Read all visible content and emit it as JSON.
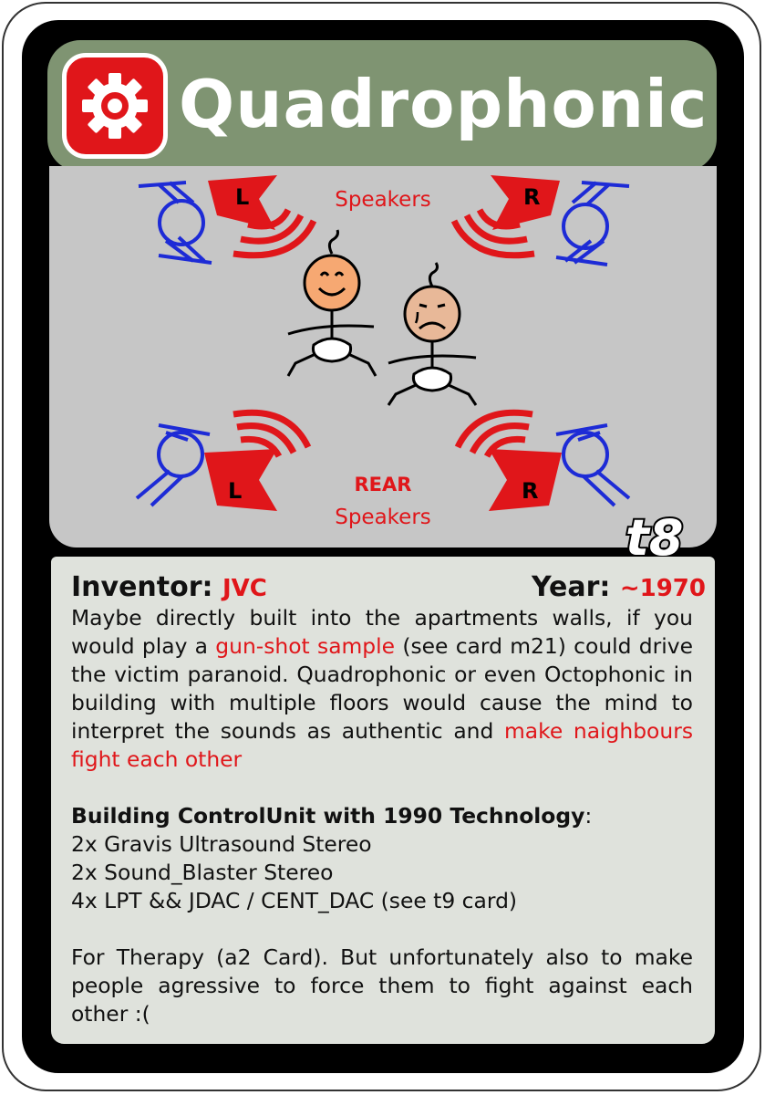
{
  "card": {
    "title": "Quadrophonic",
    "card_id": "t8",
    "icon": "gear-icon",
    "colors": {
      "title_bar": "#7f9472",
      "accent_red": "#e0161a",
      "speaker_blue": "#1d2bd6",
      "image_bg": "#c6c6c6",
      "text_bg": "#dfe2dc"
    }
  },
  "illustration": {
    "front_label": "Speakers",
    "rear_label_top": "REAR",
    "rear_label_bottom": "Speakers",
    "front_left_letter": "L",
    "front_right_letter": "R",
    "rear_left_letter": "L",
    "rear_right_letter": "R"
  },
  "meta": {
    "inventor_label": "Inventor:",
    "inventor_value": "JVC",
    "year_label": "Year:",
    "year_value": "~1970"
  },
  "description": {
    "p1_a": "Maybe directly built into the  apartments walls, if you would play a ",
    "p1_red1": "gun-shot sample",
    "p1_b": " (see card m21) could drive the victim paranoid. Quadrophonic or even Octophonic in building with multiple floors would cause the mind to interpret the sounds as authentic and ",
    "p1_red2": "make naighbours fight each other",
    "spec_heading": "Building ControlUnit with 1990 Technology",
    "spec_colon": ":",
    "spec_items": [
      "2x Gravis Ultrasound Stereo",
      "2x Sound_Blaster Stereo",
      "4x LPT && JDAC / CENT_DAC (see t9 card)"
    ],
    "p3": "For Therapy (a2 Card). But unfortunately also to make people agressive to force them to fight against each other :("
  }
}
